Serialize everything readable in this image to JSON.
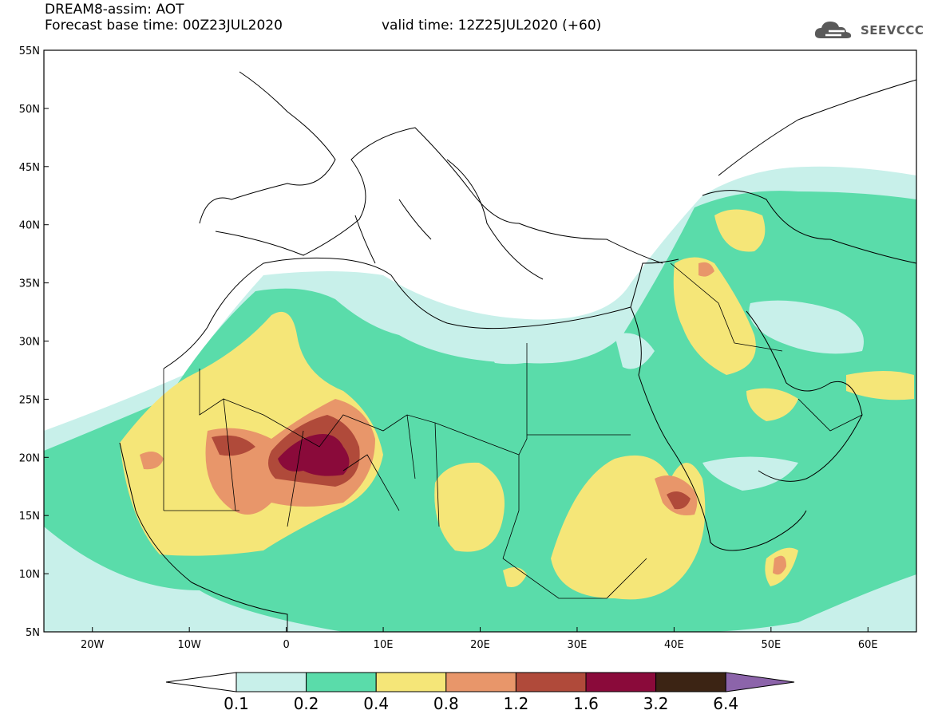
{
  "title": {
    "line1": "DREAM8-assim: AOT",
    "line2": "Forecast base time: 00Z23JUL2020",
    "valid": "valid time: 12Z25JUL2020 (+60)"
  },
  "logo": {
    "text": "SEEVCCC",
    "icon": "cloud-icon"
  },
  "map": {
    "lon_range": [
      -25,
      65
    ],
    "lat_range": [
      5,
      55
    ],
    "lon_ticks": [
      {
        "value": -20,
        "label": "20W"
      },
      {
        "value": -10,
        "label": "10W"
      },
      {
        "value": 0,
        "label": "0"
      },
      {
        "value": 10,
        "label": "10E"
      },
      {
        "value": 20,
        "label": "20E"
      },
      {
        "value": 30,
        "label": "30E"
      },
      {
        "value": 40,
        "label": "40E"
      },
      {
        "value": 50,
        "label": "50E"
      },
      {
        "value": 60,
        "label": "60E"
      }
    ],
    "lat_ticks": [
      {
        "value": 55,
        "label": "55N"
      },
      {
        "value": 50,
        "label": "50N"
      },
      {
        "value": 45,
        "label": "45N"
      },
      {
        "value": 40,
        "label": "40N"
      },
      {
        "value": 35,
        "label": "35N"
      },
      {
        "value": 30,
        "label": "30N"
      },
      {
        "value": 25,
        "label": "25N"
      },
      {
        "value": 20,
        "label": "20N"
      },
      {
        "value": 15,
        "label": "15N"
      },
      {
        "value": 10,
        "label": "10N"
      },
      {
        "value": 5,
        "label": "5N"
      }
    ]
  },
  "legend": {
    "colors": [
      "#ffffff",
      "#c8f0ea",
      "#5adcaa",
      "#f5e678",
      "#e8966a",
      "#b04a3a",
      "#8a0a3a",
      "#3c2414",
      "#8c64aa"
    ],
    "labels": [
      "0.1",
      "0.2",
      "0.4",
      "0.8",
      "1.2",
      "1.6",
      "3.2",
      "6.4"
    ]
  }
}
